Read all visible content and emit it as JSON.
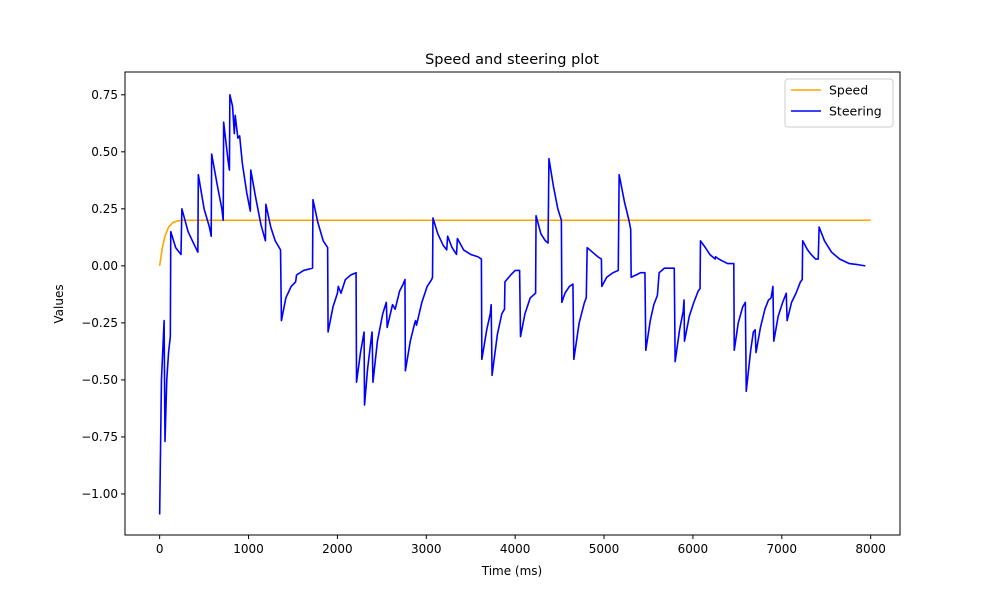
{
  "chart_data": {
    "type": "line",
    "title": "Speed and steering plot",
    "xlabel": "Time (ms)",
    "ylabel": "Values",
    "xlim": [
      -390,
      8330
    ],
    "ylim": [
      -1.18,
      0.85
    ],
    "x_ticks": [
      0,
      1000,
      2000,
      3000,
      4000,
      5000,
      6000,
      7000,
      8000
    ],
    "x_tick_labels": [
      "0",
      "1000",
      "2000",
      "3000",
      "4000",
      "5000",
      "6000",
      "7000",
      "8000"
    ],
    "y_ticks": [
      -1.0,
      -0.75,
      -0.5,
      -0.25,
      0.0,
      0.25,
      0.5,
      0.75
    ],
    "y_tick_labels": [
      "−1.00",
      "−0.75",
      "−0.50",
      "−0.25",
      "0.00",
      "0.25",
      "0.50",
      "0.75"
    ],
    "grid": false,
    "legend_position": "top-right",
    "series": [
      {
        "name": "Speed",
        "color": "#ffa500",
        "points": [
          [
            0,
            0.0
          ],
          [
            30,
            0.08
          ],
          [
            60,
            0.13
          ],
          [
            100,
            0.17
          ],
          [
            150,
            0.19
          ],
          [
            200,
            0.197
          ],
          [
            250,
            0.2
          ],
          [
            8000,
            0.2
          ]
        ]
      },
      {
        "name": "Steering",
        "color": "#0000ff",
        "points": [
          [
            0,
            -1.09
          ],
          [
            20,
            -0.5
          ],
          [
            50,
            -0.24
          ],
          [
            60,
            -0.77
          ],
          [
            80,
            -0.5
          ],
          [
            100,
            -0.38
          ],
          [
            120,
            -0.31
          ],
          [
            125,
            0.15
          ],
          [
            180,
            0.08
          ],
          [
            240,
            0.05
          ],
          [
            250,
            0.25
          ],
          [
            320,
            0.15
          ],
          [
            380,
            0.1
          ],
          [
            430,
            0.06
          ],
          [
            435,
            0.4
          ],
          [
            500,
            0.25
          ],
          [
            560,
            0.17
          ],
          [
            580,
            0.13
          ],
          [
            585,
            0.49
          ],
          [
            650,
            0.35
          ],
          [
            700,
            0.25
          ],
          [
            715,
            0.2
          ],
          [
            720,
            0.63
          ],
          [
            770,
            0.46
          ],
          [
            785,
            0.42
          ],
          [
            790,
            0.75
          ],
          [
            820,
            0.7
          ],
          [
            840,
            0.58
          ],
          [
            850,
            0.66
          ],
          [
            880,
            0.56
          ],
          [
            900,
            0.57
          ],
          [
            930,
            0.45
          ],
          [
            980,
            0.32
          ],
          [
            1020,
            0.24
          ],
          [
            1025,
            0.42
          ],
          [
            1080,
            0.3
          ],
          [
            1140,
            0.18
          ],
          [
            1190,
            0.11
          ],
          [
            1195,
            0.27
          ],
          [
            1250,
            0.17
          ],
          [
            1300,
            0.11
          ],
          [
            1360,
            0.07
          ],
          [
            1370,
            -0.24
          ],
          [
            1420,
            -0.14
          ],
          [
            1480,
            -0.09
          ],
          [
            1530,
            -0.07
          ],
          [
            1540,
            -0.04
          ],
          [
            1620,
            -0.02
          ],
          [
            1720,
            -0.01
          ],
          [
            1725,
            0.29
          ],
          [
            1780,
            0.19
          ],
          [
            1840,
            0.11
          ],
          [
            1890,
            0.08
          ],
          [
            1895,
            -0.29
          ],
          [
            1950,
            -0.18
          ],
          [
            2000,
            -0.12
          ],
          [
            2010,
            -0.09
          ],
          [
            2040,
            -0.12
          ],
          [
            2090,
            -0.06
          ],
          [
            2150,
            -0.04
          ],
          [
            2210,
            -0.03
          ],
          [
            2215,
            -0.51
          ],
          [
            2260,
            -0.38
          ],
          [
            2300,
            -0.29
          ],
          [
            2305,
            -0.61
          ],
          [
            2340,
            -0.45
          ],
          [
            2380,
            -0.32
          ],
          [
            2390,
            -0.29
          ],
          [
            2400,
            -0.51
          ],
          [
            2450,
            -0.33
          ],
          [
            2510,
            -0.21
          ],
          [
            2550,
            -0.16
          ],
          [
            2560,
            -0.27
          ],
          [
            2620,
            -0.17
          ],
          [
            2650,
            -0.19
          ],
          [
            2700,
            -0.11
          ],
          [
            2740,
            -0.08
          ],
          [
            2760,
            -0.06
          ],
          [
            2765,
            -0.46
          ],
          [
            2820,
            -0.33
          ],
          [
            2870,
            -0.25
          ],
          [
            2880,
            -0.24
          ],
          [
            2890,
            -0.26
          ],
          [
            2950,
            -0.16
          ],
          [
            3010,
            -0.09
          ],
          [
            3060,
            -0.06
          ],
          [
            3070,
            -0.05
          ],
          [
            3075,
            0.21
          ],
          [
            3130,
            0.14
          ],
          [
            3190,
            0.09
          ],
          [
            3230,
            0.07
          ],
          [
            3240,
            0.13
          ],
          [
            3290,
            0.08
          ],
          [
            3340,
            0.05
          ],
          [
            3350,
            0.12
          ],
          [
            3420,
            0.07
          ],
          [
            3500,
            0.05
          ],
          [
            3580,
            0.04
          ],
          [
            3620,
            0.03
          ],
          [
            3625,
            -0.41
          ],
          [
            3680,
            -0.28
          ],
          [
            3720,
            -0.21
          ],
          [
            3730,
            -0.17
          ],
          [
            3740,
            -0.48
          ],
          [
            3800,
            -0.3
          ],
          [
            3850,
            -0.21
          ],
          [
            3880,
            -0.19
          ],
          [
            3885,
            -0.07
          ],
          [
            3950,
            -0.04
          ],
          [
            4000,
            -0.02
          ],
          [
            4050,
            -0.02
          ],
          [
            4060,
            -0.31
          ],
          [
            4110,
            -0.21
          ],
          [
            4170,
            -0.14
          ],
          [
            4230,
            -0.12
          ],
          [
            4235,
            0.22
          ],
          [
            4290,
            0.14
          ],
          [
            4340,
            0.11
          ],
          [
            4370,
            0.1
          ],
          [
            4380,
            0.47
          ],
          [
            4430,
            0.35
          ],
          [
            4480,
            0.25
          ],
          [
            4520,
            0.2
          ],
          [
            4525,
            -0.16
          ],
          [
            4560,
            -0.12
          ],
          [
            4610,
            -0.09
          ],
          [
            4650,
            -0.08
          ],
          [
            4660,
            -0.41
          ],
          [
            4720,
            -0.25
          ],
          [
            4780,
            -0.16
          ],
          [
            4800,
            -0.14
          ],
          [
            4810,
            0.08
          ],
          [
            4870,
            0.06
          ],
          [
            4930,
            0.04
          ],
          [
            4970,
            0.03
          ],
          [
            4975,
            -0.09
          ],
          [
            5030,
            -0.05
          ],
          [
            5100,
            -0.03
          ],
          [
            5160,
            -0.02
          ],
          [
            5170,
            0.4
          ],
          [
            5230,
            0.28
          ],
          [
            5280,
            0.2
          ],
          [
            5300,
            0.16
          ],
          [
            5305,
            -0.05
          ],
          [
            5360,
            -0.04
          ],
          [
            5410,
            -0.03
          ],
          [
            5460,
            -0.03
          ],
          [
            5470,
            -0.37
          ],
          [
            5520,
            -0.24
          ],
          [
            5560,
            -0.17
          ],
          [
            5600,
            -0.13
          ],
          [
            5620,
            -0.03
          ],
          [
            5680,
            -0.01
          ],
          [
            5740,
            -0.01
          ],
          [
            5790,
            -0.01
          ],
          [
            5800,
            -0.42
          ],
          [
            5850,
            -0.28
          ],
          [
            5890,
            -0.2
          ],
          [
            5900,
            -0.15
          ],
          [
            5905,
            -0.33
          ],
          [
            5960,
            -0.22
          ],
          [
            6010,
            -0.16
          ],
          [
            6060,
            -0.11
          ],
          [
            6080,
            -0.1
          ],
          [
            6085,
            0.11
          ],
          [
            6140,
            0.08
          ],
          [
            6190,
            0.05
          ],
          [
            6250,
            0.03
          ],
          [
            6255,
            0.04
          ],
          [
            6290,
            0.03
          ],
          [
            6340,
            0.02
          ],
          [
            6390,
            0.01
          ],
          [
            6440,
            0.01
          ],
          [
            6460,
            0.01
          ],
          [
            6465,
            -0.37
          ],
          [
            6510,
            -0.25
          ],
          [
            6560,
            -0.18
          ],
          [
            6590,
            -0.16
          ],
          [
            6600,
            -0.55
          ],
          [
            6650,
            -0.37
          ],
          [
            6680,
            -0.29
          ],
          [
            6700,
            -0.28
          ],
          [
            6710,
            -0.38
          ],
          [
            6760,
            -0.27
          ],
          [
            6810,
            -0.19
          ],
          [
            6850,
            -0.15
          ],
          [
            6880,
            -0.14
          ],
          [
            6900,
            -0.09
          ],
          [
            6910,
            -0.33
          ],
          [
            6960,
            -0.22
          ],
          [
            7010,
            -0.16
          ],
          [
            7050,
            -0.12
          ],
          [
            7060,
            -0.24
          ],
          [
            7110,
            -0.16
          ],
          [
            7160,
            -0.12
          ],
          [
            7210,
            -0.07
          ],
          [
            7230,
            -0.06
          ],
          [
            7235,
            0.11
          ],
          [
            7290,
            0.07
          ],
          [
            7330,
            0.05
          ],
          [
            7380,
            0.03
          ],
          [
            7410,
            0.03
          ],
          [
            7420,
            0.17
          ],
          [
            7480,
            0.11
          ],
          [
            7560,
            0.06
          ],
          [
            7650,
            0.03
          ],
          [
            7760,
            0.01
          ],
          [
            7860,
            0.005
          ],
          [
            7940,
            0.0
          ]
        ]
      }
    ]
  }
}
